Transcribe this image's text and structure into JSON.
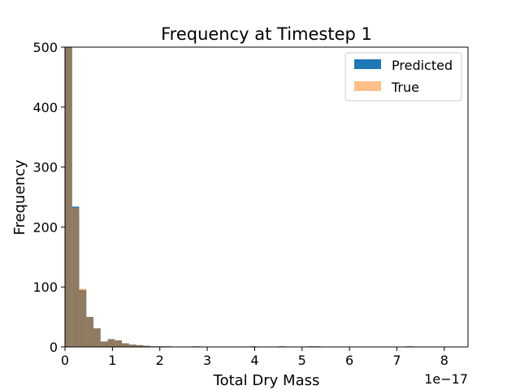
{
  "chart_data": {
    "type": "bar",
    "title": "Frequency at Timestep 1",
    "xlabel": "Total Dry Mass",
    "ylabel": "Frequency",
    "x_offset_text": "1e−17",
    "xlim": [
      0,
      8.5
    ],
    "ylim": [
      0,
      500
    ],
    "xticks": [
      "0",
      "1",
      "2",
      "3",
      "4",
      "5",
      "6",
      "7",
      "8"
    ],
    "yticks": [
      "0",
      "100",
      "200",
      "300",
      "400",
      "500"
    ],
    "grid": false,
    "legend_position": "upper right",
    "bin_width": 0.15,
    "bin_starts": [
      0.0,
      0.15,
      0.3,
      0.45,
      0.6,
      0.75,
      0.9,
      1.05,
      1.2,
      1.35,
      1.5,
      1.65,
      1.8,
      1.95,
      2.1,
      2.7,
      3.9,
      4.5,
      5.1,
      5.25,
      7.2
    ],
    "series": [
      {
        "name": "Predicted",
        "color": "#1f77b4",
        "alpha": 1.0,
        "values": [
          500,
          234,
          95,
          50,
          31,
          9,
          13,
          11,
          6,
          4,
          3,
          2,
          1,
          1,
          1,
          1,
          1,
          1,
          1,
          1,
          1
        ]
      },
      {
        "name": "True",
        "color": "#ff7f0e",
        "alpha": 0.5,
        "values": [
          500,
          232,
          97,
          50,
          31,
          9,
          13,
          11,
          6,
          4,
          3,
          2,
          1,
          1,
          1,
          1,
          1,
          1,
          1,
          1,
          1
        ]
      }
    ]
  }
}
